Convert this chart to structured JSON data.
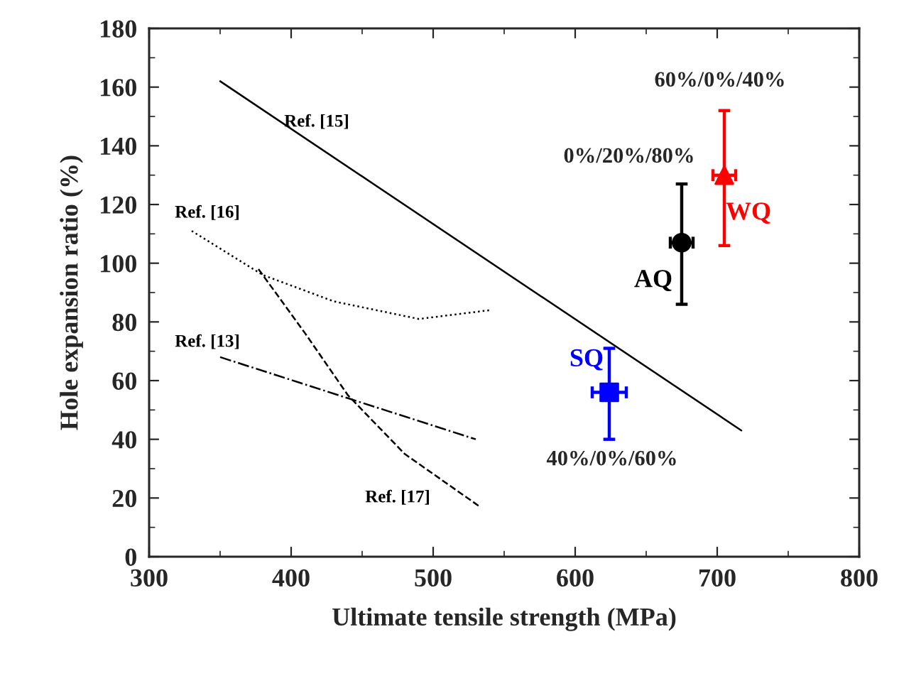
{
  "chart_data": {
    "type": "line",
    "xlabel": "Ultimate tensile strength (MPa)",
    "ylabel": "Hole expansion ratio (%)",
    "xlim": [
      300,
      800
    ],
    "xticks": [
      300,
      400,
      500,
      600,
      700,
      800
    ],
    "ylim": [
      0,
      180
    ],
    "yticks": [
      0,
      20,
      40,
      60,
      80,
      100,
      120,
      140,
      160,
      180
    ],
    "series": [
      {
        "name": "Ref. [15]",
        "color": "#000000",
        "line_style": "solid",
        "x": [
          350,
          717
        ],
        "values": [
          162,
          43
        ]
      },
      {
        "name": "Ref. [16]",
        "color": "#000000",
        "line_style": "dotted",
        "x": [
          330,
          380,
          430,
          490,
          540
        ],
        "values": [
          111,
          96,
          87,
          81,
          84
        ]
      },
      {
        "name": "Ref. [17]",
        "color": "#000000",
        "line_style": "dashed",
        "x": [
          377,
          410,
          440,
          480,
          533
        ],
        "values": [
          98,
          76,
          55,
          35,
          17
        ]
      },
      {
        "name": "Ref. [13]",
        "color": "#000000",
        "line_style": "dashdot",
        "x": [
          350,
          440,
          530
        ],
        "values": [
          68,
          54,
          40
        ]
      },
      {
        "type": "scatter",
        "name": "AQ",
        "color": "#000000",
        "marker": "circle",
        "x": [
          675
        ],
        "values": [
          107
        ],
        "errors": [
          [
            86,
            127
          ]
        ],
        "xerrors": [
          8
        ]
      },
      {
        "type": "scatter",
        "name": "WQ",
        "color": "#ff0000",
        "marker": "triangle",
        "x": [
          705
        ],
        "values": [
          130
        ],
        "errors": [
          [
            106,
            152
          ]
        ],
        "xerrors": [
          8
        ]
      },
      {
        "type": "scatter",
        "name": "SQ",
        "color": "#0000ff",
        "marker": "square",
        "x": [
          624
        ],
        "values": [
          56
        ],
        "errors": [
          [
            40,
            71
          ]
        ],
        "xerrors": [
          12
        ]
      }
    ],
    "annotations": [
      "0%/20%/80%",
      "60%/0%/40%",
      "40%/0%/60%"
    ]
  }
}
